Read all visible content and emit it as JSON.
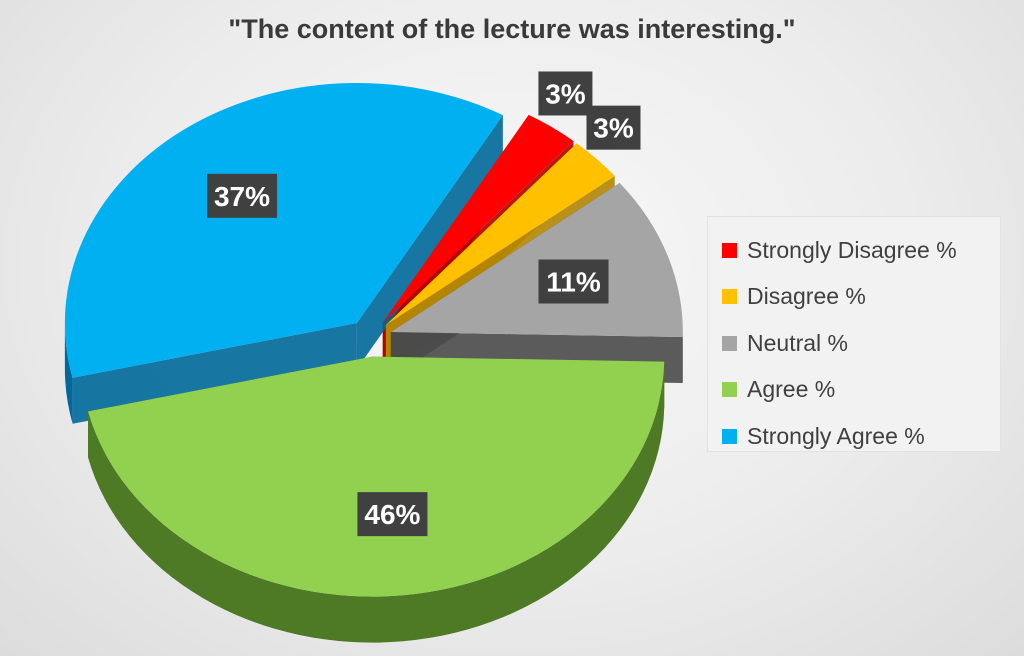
{
  "chart_data": {
    "type": "pie",
    "title": "\"The content of the lecture was interesting.\"",
    "legend_position": "right",
    "slices": [
      {
        "name": "Strongly Disagree %",
        "value": 3,
        "label": "3%",
        "color": "#ff0000",
        "side": "#b30000"
      },
      {
        "name": "Disagree %",
        "value": 3,
        "label": "3%",
        "color": "#ffc000",
        "side": "#b38600"
      },
      {
        "name": "Neutral %",
        "value": 11,
        "label": "11%",
        "color": "#a5a5a5",
        "side": "#4a4a4a"
      },
      {
        "name": "Agree %",
        "value": 46,
        "label": "46%",
        "color": "#92d050",
        "side": "#4e7a25"
      },
      {
        "name": "Strongly Agree %",
        "value": 37,
        "label": "37%",
        "color": "#00b0f0",
        "side": "#00689a"
      }
    ]
  }
}
